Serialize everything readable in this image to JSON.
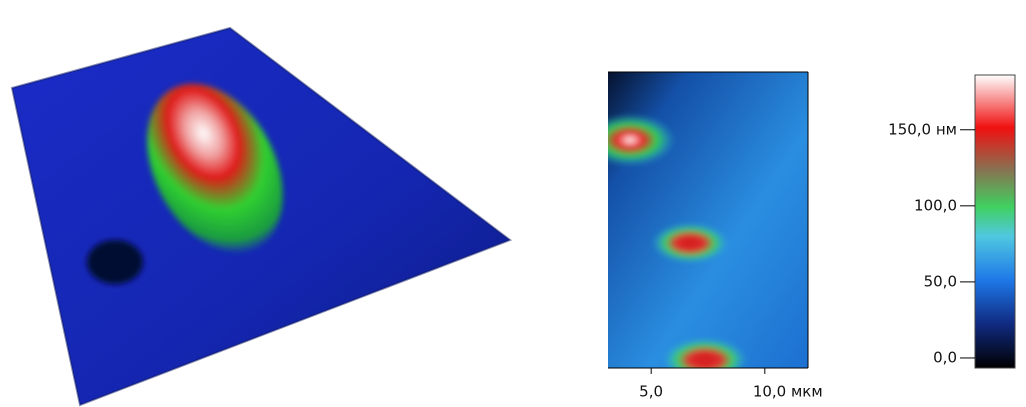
{
  "map_view": {
    "xlim": [
      3.1,
      11.9
    ],
    "xticks": [
      {
        "value": 5,
        "label": "5,0"
      },
      {
        "value": 10,
        "label": "10,0 мкм"
      }
    ]
  },
  "color_scale": {
    "lim": [
      -6.6,
      186
    ],
    "ticks": [
      {
        "value": 150,
        "label": "150,0 нм"
      },
      {
        "value": 100,
        "label": "100,0"
      },
      {
        "value": 50,
        "label": "50,0"
      },
      {
        "value": 0,
        "label": "0,0"
      }
    ]
  }
}
